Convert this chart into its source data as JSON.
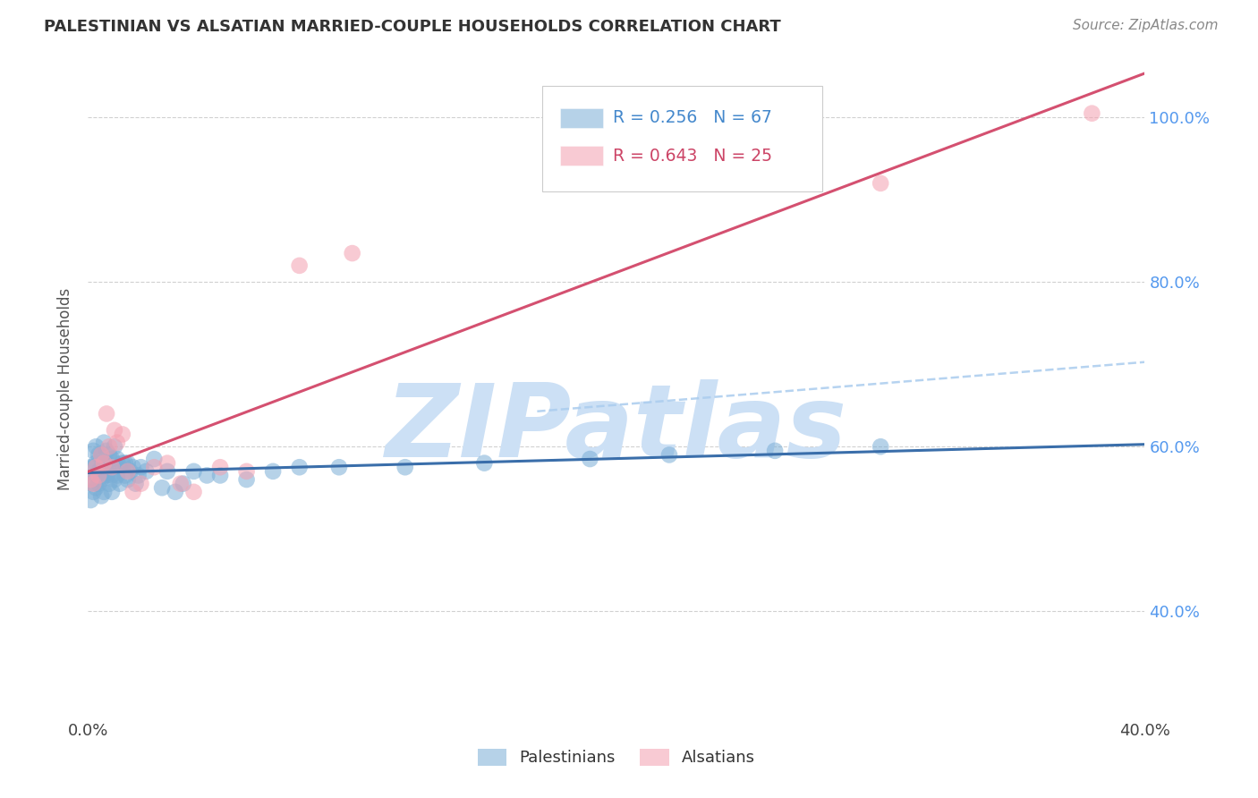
{
  "title": "PALESTINIAN VS ALSATIAN MARRIED-COUPLE HOUSEHOLDS CORRELATION CHART",
  "source": "Source: ZipAtlas.com",
  "ylabel": "Married-couple Households",
  "xlim": [
    0.0,
    0.4
  ],
  "ylim": [
    0.27,
    1.07
  ],
  "blue_color": "#7aaed6",
  "pink_color": "#f4a0b0",
  "blue_line_color": "#3a6eaa",
  "pink_line_color": "#d45070",
  "blue_dash_color": "#aaccee",
  "grid_color": "#cccccc",
  "background_color": "#ffffff",
  "watermark": "ZIPatlas",
  "watermark_color": "#cce0f5",
  "R_blue": "0.256",
  "N_blue": "67",
  "R_pink": "0.643",
  "N_pink": "25",
  "palestinians_x": [
    0.001,
    0.001,
    0.001,
    0.002,
    0.002,
    0.002,
    0.002,
    0.003,
    0.003,
    0.003,
    0.003,
    0.004,
    0.004,
    0.004,
    0.005,
    0.005,
    0.005,
    0.005,
    0.006,
    0.006,
    0.006,
    0.006,
    0.007,
    0.007,
    0.007,
    0.008,
    0.008,
    0.008,
    0.009,
    0.009,
    0.009,
    0.01,
    0.01,
    0.01,
    0.011,
    0.011,
    0.012,
    0.012,
    0.013,
    0.014,
    0.014,
    0.015,
    0.015,
    0.016,
    0.017,
    0.018,
    0.019,
    0.02,
    0.022,
    0.025,
    0.028,
    0.03,
    0.033,
    0.036,
    0.04,
    0.045,
    0.05,
    0.06,
    0.07,
    0.08,
    0.095,
    0.12,
    0.15,
    0.19,
    0.22,
    0.26,
    0.3
  ],
  "palestinians_y": [
    0.535,
    0.555,
    0.575,
    0.545,
    0.56,
    0.575,
    0.595,
    0.55,
    0.565,
    0.58,
    0.6,
    0.555,
    0.57,
    0.59,
    0.54,
    0.56,
    0.575,
    0.59,
    0.545,
    0.565,
    0.58,
    0.605,
    0.565,
    0.58,
    0.595,
    0.555,
    0.57,
    0.59,
    0.545,
    0.565,
    0.585,
    0.56,
    0.58,
    0.6,
    0.565,
    0.585,
    0.555,
    0.575,
    0.58,
    0.565,
    0.58,
    0.56,
    0.58,
    0.57,
    0.575,
    0.555,
    0.565,
    0.575,
    0.57,
    0.585,
    0.55,
    0.57,
    0.545,
    0.555,
    0.57,
    0.565,
    0.565,
    0.56,
    0.57,
    0.575,
    0.575,
    0.575,
    0.58,
    0.585,
    0.59,
    0.595,
    0.6
  ],
  "alsatians_x": [
    0.001,
    0.002,
    0.003,
    0.004,
    0.005,
    0.006,
    0.007,
    0.008,
    0.009,
    0.01,
    0.011,
    0.013,
    0.015,
    0.017,
    0.02,
    0.025,
    0.03,
    0.035,
    0.04,
    0.05,
    0.06,
    0.08,
    0.1,
    0.3,
    0.38
  ],
  "alsatians_y": [
    0.56,
    0.555,
    0.575,
    0.565,
    0.59,
    0.58,
    0.64,
    0.6,
    0.575,
    0.62,
    0.605,
    0.615,
    0.57,
    0.545,
    0.555,
    0.575,
    0.58,
    0.555,
    0.545,
    0.575,
    0.57,
    0.82,
    0.835,
    0.92,
    1.005
  ]
}
